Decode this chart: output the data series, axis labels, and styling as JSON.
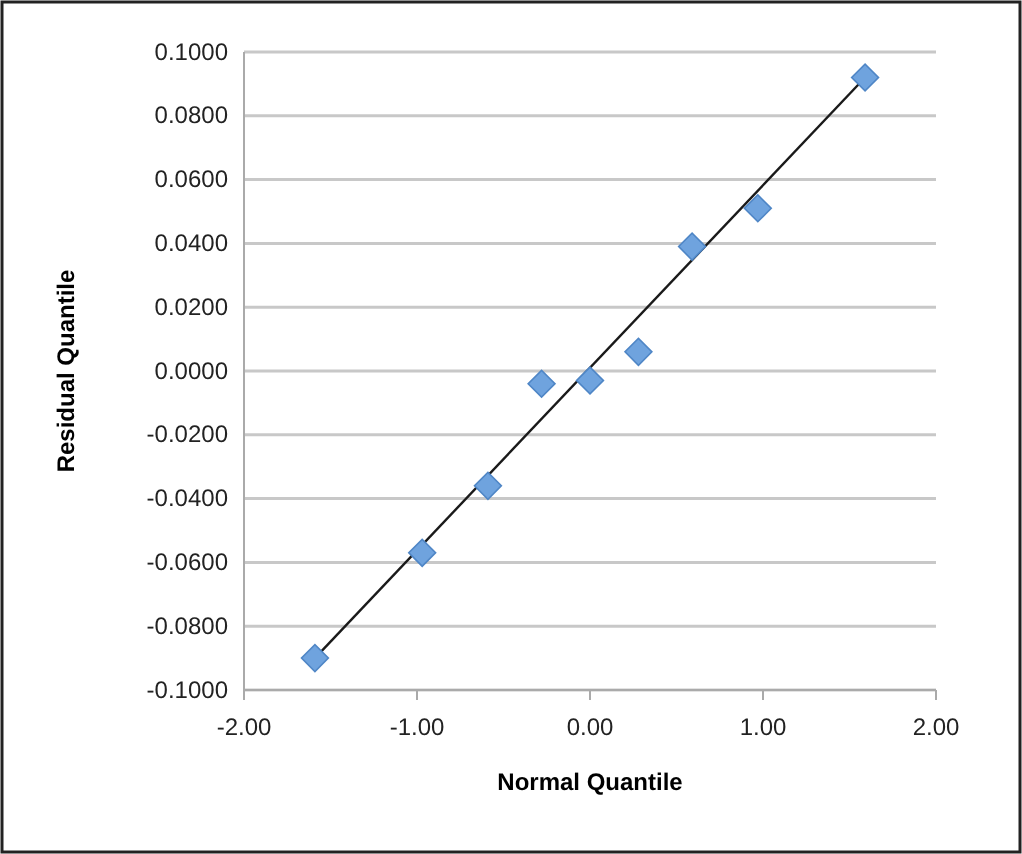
{
  "chart_data": {
    "type": "scatter",
    "xlabel": "Normal Quantile",
    "ylabel": "Residual Quantile",
    "xlim": [
      -2,
      2
    ],
    "xticks": [
      {
        "value": -2,
        "label": "-2.00"
      },
      {
        "value": -1,
        "label": "-1.00"
      },
      {
        "value": 0,
        "label": "0.00"
      },
      {
        "value": 1,
        "label": "1.00"
      },
      {
        "value": 2,
        "label": "2.00"
      }
    ],
    "ylim": [
      -0.1,
      0.1
    ],
    "yticks": [
      {
        "value": -0.1,
        "label": "-0.1000"
      },
      {
        "value": -0.08,
        "label": "-0.0800"
      },
      {
        "value": -0.06,
        "label": "-0.0600"
      },
      {
        "value": -0.04,
        "label": "-0.0400"
      },
      {
        "value": -0.02,
        "label": "-0.0200"
      },
      {
        "value": 0,
        "label": "0.0000"
      },
      {
        "value": 0.02,
        "label": "0.0200"
      },
      {
        "value": 0.04,
        "label": "0.0400"
      },
      {
        "value": 0.06,
        "label": "0.0600"
      },
      {
        "value": 0.08,
        "label": "0.0800"
      },
      {
        "value": 0.1,
        "label": "0.1000"
      }
    ],
    "grid": "y",
    "series": [
      {
        "type": "line",
        "color": "#1a1a1a",
        "line_style": "solid",
        "x": [
          -1.59,
          1.59
        ],
        "values": [
          -0.09,
          0.092
        ]
      },
      {
        "color": "#6fa3de",
        "marker": "diamond",
        "x": [
          -1.59,
          -0.97,
          -0.59,
          -0.28,
          0,
          0.28,
          0.59,
          0.97,
          1.59
        ],
        "values": [
          -0.09,
          -0.057,
          -0.036,
          -0.004,
          -0.003,
          0.006,
          0.039,
          0.051,
          0.092
        ]
      }
    ]
  }
}
